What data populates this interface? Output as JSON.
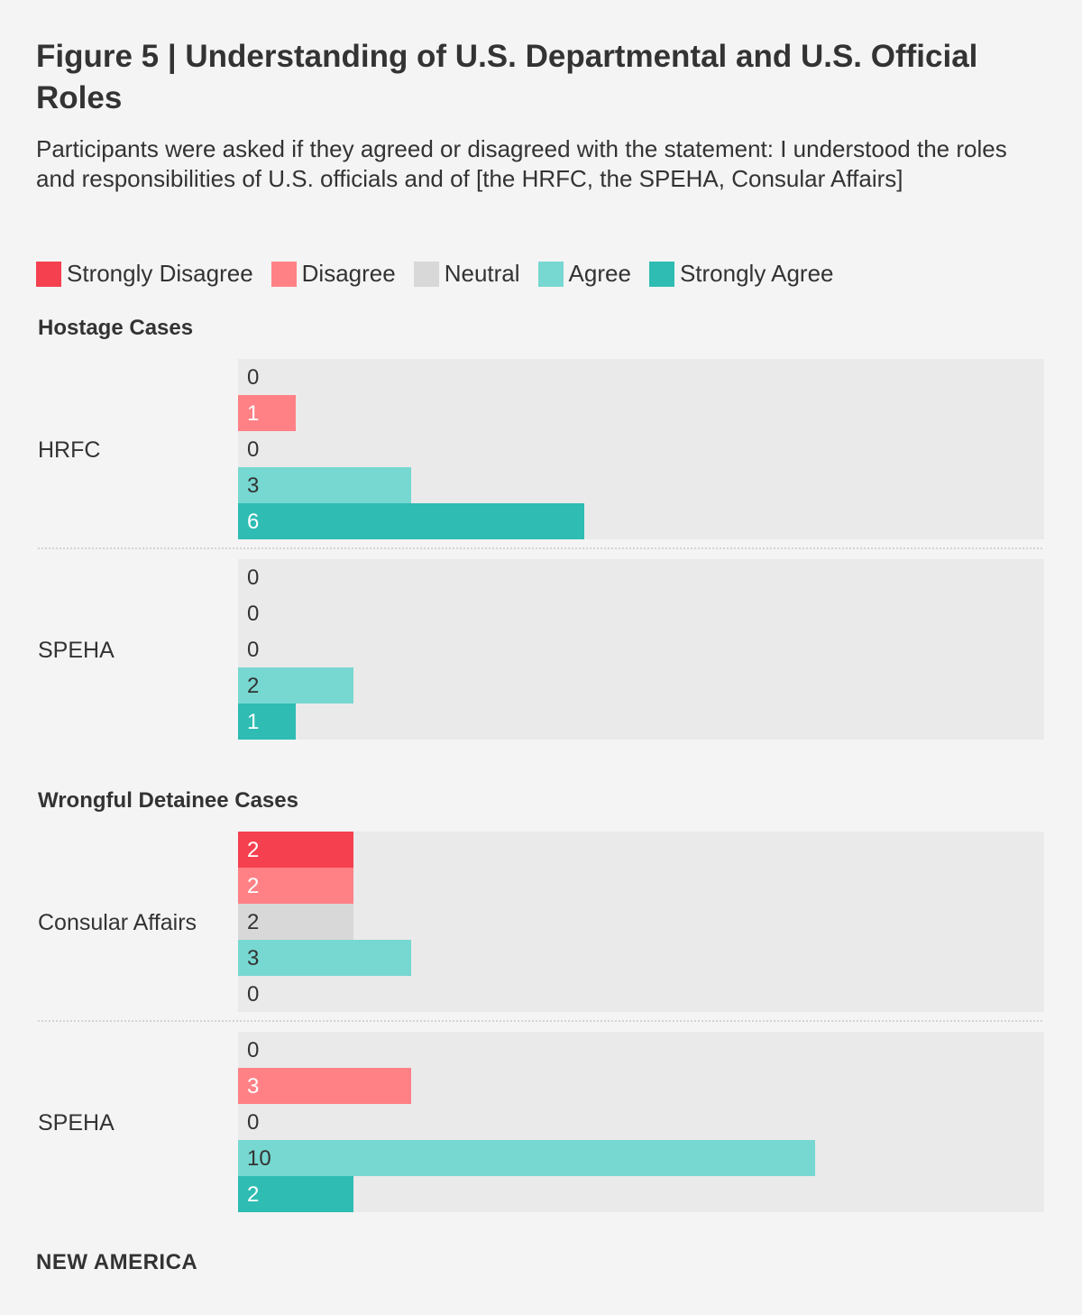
{
  "title": "Figure 5 | Understanding of U.S. Departmental and U.S. Official Roles",
  "subtitle": "Participants were asked if they agreed or disagreed with the statement: I understood the roles and responsibilities of U.S. officials and of [the HRFC, the SPEHA, Consular Affairs]",
  "legend": [
    {
      "label": "Strongly Disagree",
      "color": "#f5404f"
    },
    {
      "label": "Disagree",
      "color": "#ff8186"
    },
    {
      "label": "Neutral",
      "color": "#d8d8d8"
    },
    {
      "label": "Agree",
      "color": "#77d7d1"
    },
    {
      "label": "Strongly Agree",
      "color": "#2ebcb3"
    }
  ],
  "footer": "NEW AMERICA",
  "chart_data": {
    "type": "bar",
    "orientation": "horizontal",
    "categories": [
      "Strongly Disagree",
      "Disagree",
      "Neutral",
      "Agree",
      "Strongly Agree"
    ],
    "xlim": [
      0,
      14
    ],
    "sections": [
      {
        "title": "Hostage Cases",
        "groups": [
          {
            "label": "HRFC",
            "values": [
              0,
              1,
              0,
              3,
              6
            ]
          },
          {
            "label": "SPEHA",
            "values": [
              0,
              0,
              0,
              2,
              1
            ]
          }
        ]
      },
      {
        "title": "Wrongful Detainee Cases",
        "groups": [
          {
            "label": "Consular Affairs",
            "values": [
              2,
              2,
              2,
              3,
              0
            ]
          },
          {
            "label": "SPEHA",
            "values": [
              0,
              3,
              0,
              10,
              2
            ]
          }
        ]
      }
    ]
  }
}
